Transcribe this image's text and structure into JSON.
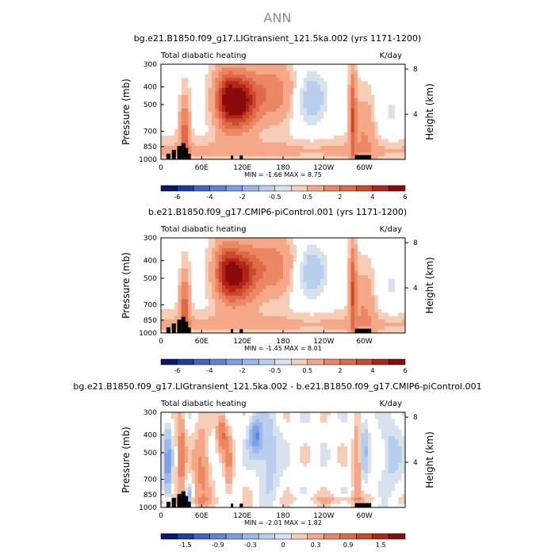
{
  "figure": {
    "title": "ANN"
  },
  "colors": {
    "warm": [
      "#f6cdb7",
      "#f4a888",
      "#eb8762",
      "#de6a48",
      "#cb4a2c",
      "#b32418",
      "#8a0b0b"
    ],
    "cool": [
      "#d8e2ef",
      "#b9cdec",
      "#9cb8ea",
      "#7da0e4",
      "#5d84d8",
      "#3d64c8",
      "#1c3d9e",
      "#07186b"
    ],
    "zero": "#ffffff",
    "terrain": "#000000"
  },
  "chart_data": [
    {
      "type": "heatmap",
      "title": "bg.e21.B1850.f09_g17.LIGtransient_121.5ka.002 (yrs 1171-1200)",
      "left_label": "Total diabatic heating",
      "right_label": "K/day",
      "ylabel": "Pressure (mb)",
      "ylabel_right": "Height (km)",
      "xticks": [
        "0",
        "60E",
        "120E",
        "180",
        "120W",
        "60W"
      ],
      "xtick_values": [
        0,
        60,
        120,
        180,
        240,
        300
      ],
      "xlim": [
        0,
        360
      ],
      "yticks": [
        "300",
        "400",
        "500",
        "700",
        "850",
        "1000"
      ],
      "ytick_values": [
        300,
        400,
        500,
        700,
        850,
        1000
      ],
      "ylim": [
        1000,
        300
      ],
      "height_ticks": [
        "8",
        "4"
      ],
      "height_values": [
        8,
        4
      ],
      "stats": {
        "min_label": "MIN =",
        "min": "-1.66",
        "max_label": "MAX =",
        "max": "8.75"
      },
      "colorbar": {
        "ticks": [
          "-6",
          "-4",
          "-2",
          "-0.5",
          "0.5",
          "2",
          "4",
          "6"
        ],
        "levels": [
          -8,
          -6,
          -5,
          -4,
          -3,
          -2,
          -1,
          -0.5,
          0.5,
          1,
          2,
          3,
          4,
          5,
          6,
          8
        ]
      }
    },
    {
      "type": "heatmap",
      "title": "b.e21.B1850.f09_g17.CMIP6-piControl.001 (yrs 1171-1200)",
      "left_label": "Total diabatic heating",
      "right_label": "K/day",
      "ylabel": "Pressure (mb)",
      "ylabel_right": "Height (km)",
      "xticks": [
        "0",
        "60E",
        "120E",
        "180",
        "120W",
        "60W"
      ],
      "xtick_values": [
        0,
        60,
        120,
        180,
        240,
        300
      ],
      "xlim": [
        0,
        360
      ],
      "yticks": [
        "300",
        "400",
        "500",
        "700",
        "850",
        "1000"
      ],
      "ytick_values": [
        300,
        400,
        500,
        700,
        850,
        1000
      ],
      "ylim": [
        1000,
        300
      ],
      "height_ticks": [
        "8",
        "4"
      ],
      "height_values": [
        8,
        4
      ],
      "stats": {
        "min_label": "MIN =",
        "min": "-1.45",
        "max_label": "MAX =",
        "max": "8.01"
      },
      "colorbar": {
        "ticks": [
          "-6",
          "-4",
          "-2",
          "-0.5",
          "0.5",
          "2",
          "4",
          "6"
        ],
        "levels": [
          -8,
          -6,
          -5,
          -4,
          -3,
          -2,
          -1,
          -0.5,
          0.5,
          1,
          2,
          3,
          4,
          5,
          6,
          8
        ]
      }
    },
    {
      "type": "heatmap",
      "title": "bg.e21.B1850.f09_g17.LIGtransient_121.5ka.002 - b.e21.B1850.f09_g17.CMIP6-piControl.001",
      "left_label": "Total diabatic heating",
      "right_label": "K/day",
      "ylabel": "Pressure (mb)",
      "ylabel_right": "Height (km)",
      "xticks": [
        "0",
        "60E",
        "120E",
        "180",
        "120W",
        "60W"
      ],
      "xtick_values": [
        0,
        60,
        120,
        180,
        240,
        300
      ],
      "xlim": [
        0,
        360
      ],
      "yticks": [
        "300",
        "400",
        "500",
        "700",
        "850",
        "1000"
      ],
      "ytick_values": [
        300,
        400,
        500,
        700,
        850,
        1000
      ],
      "ylim": [
        1000,
        300
      ],
      "height_ticks": [
        "8",
        "4"
      ],
      "height_values": [
        8,
        4
      ],
      "stats": {
        "min_label": "MIN =",
        "min": "-2.01",
        "max_label": "MAX =",
        "max": "1.82"
      },
      "colorbar": {
        "ticks": [
          "-1.5",
          "-0.9",
          "-0.3",
          "0",
          "0.3",
          "0.9",
          "1.5"
        ],
        "levels": [
          -2.1,
          -1.8,
          -1.5,
          -1.2,
          -0.9,
          -0.6,
          -0.3,
          -0.1,
          0.1,
          0.3,
          0.6,
          0.9,
          1.2,
          1.5,
          1.8,
          2.1
        ]
      }
    }
  ]
}
